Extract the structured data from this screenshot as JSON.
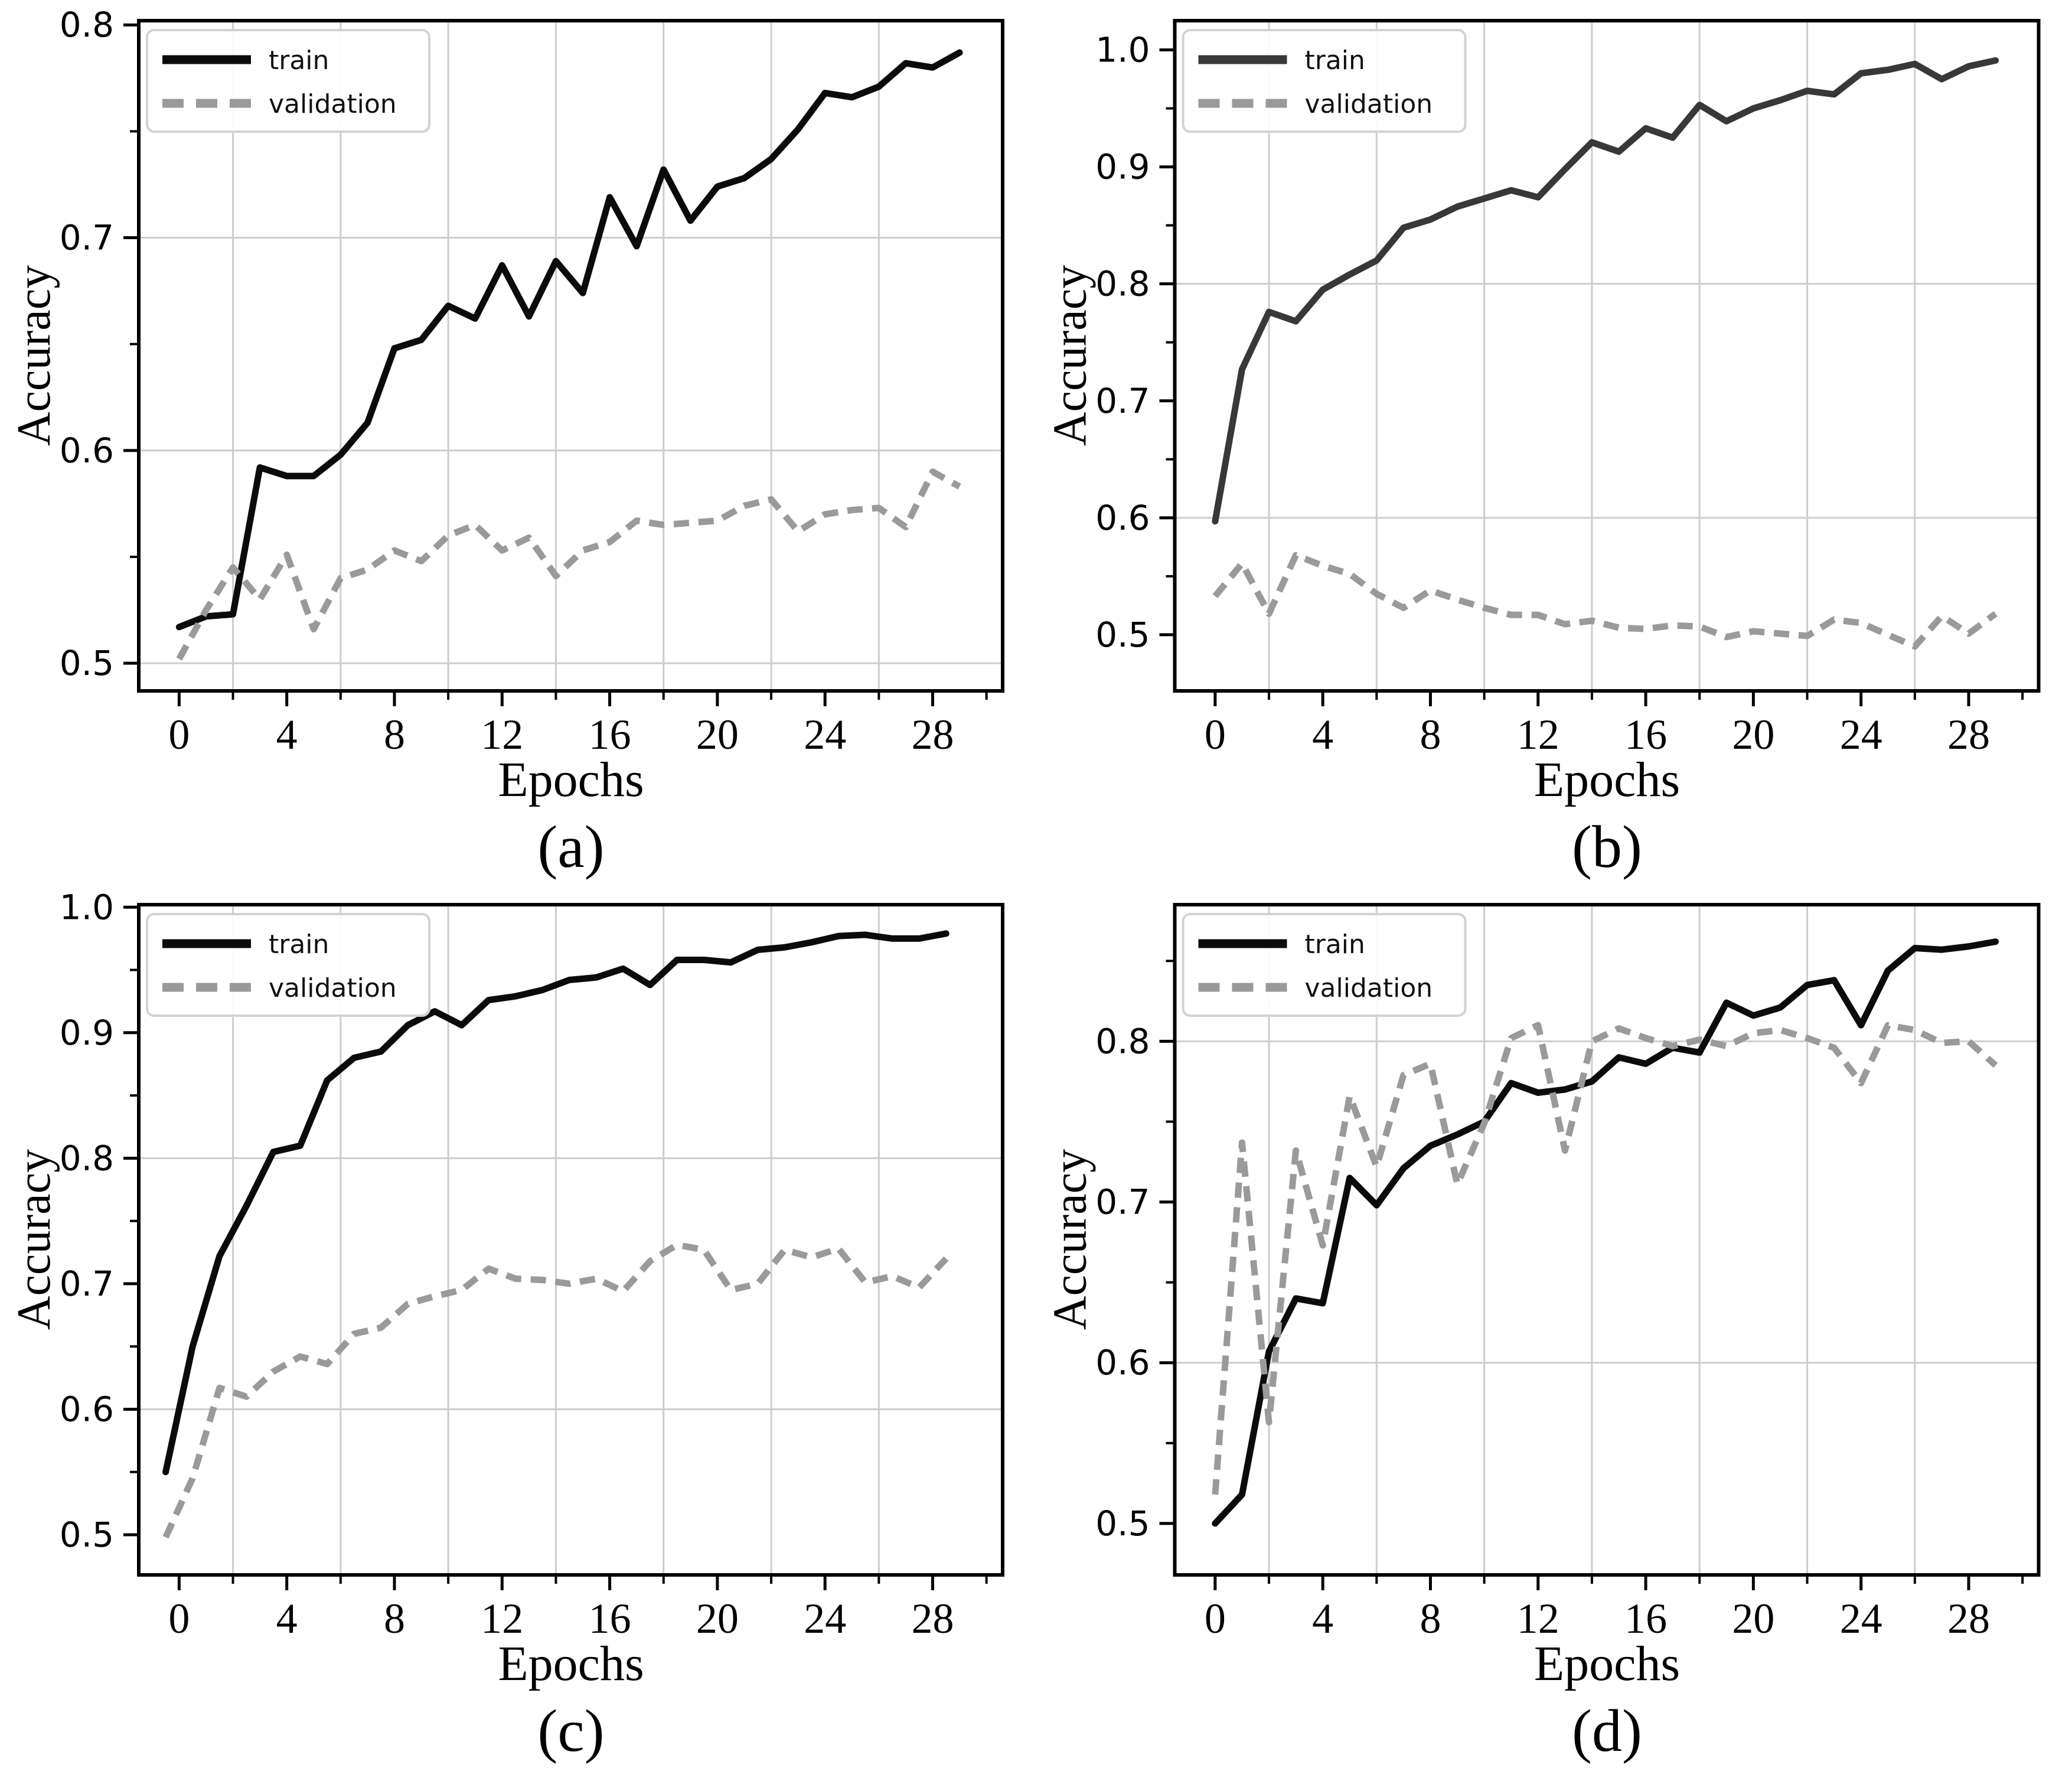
{
  "figure": {
    "background": "#ffffff",
    "grid_color": "#cdcdcd",
    "spine_color": "#000000",
    "legend_border_color": "#d2d2d2",
    "legend_fill": "#ffffff"
  },
  "chart_data": [
    {
      "type": "line",
      "caption": "(a)",
      "xlabel": "Epochs",
      "ylabel": "Accuracy",
      "x": [
        0,
        1,
        2,
        3,
        4,
        5,
        6,
        7,
        8,
        9,
        10,
        11,
        12,
        13,
        14,
        15,
        16,
        17,
        18,
        19,
        20,
        21,
        22,
        23,
        24,
        25,
        26,
        27,
        28,
        29
      ],
      "x_offset": 0,
      "xlim": [
        -1.5,
        30.6
      ],
      "ylim": [
        0.487,
        0.802
      ],
      "xticks": [
        0,
        4,
        8,
        12,
        16,
        20,
        24,
        28
      ],
      "xminorticks": [
        2,
        6,
        10,
        14,
        18,
        22,
        26,
        30
      ],
      "yticks": [
        0.5,
        0.6,
        0.7,
        0.8
      ],
      "ytick_labels": [
        "0.5",
        "0.6",
        "0.7",
        "0.8"
      ],
      "yminorticks": [
        0.55,
        0.65,
        0.75
      ],
      "grid_x": [
        2,
        6,
        10,
        14,
        18,
        22,
        26
      ],
      "grid_y": [
        0.5,
        0.6,
        0.7
      ],
      "legend_position": "upper-left",
      "series": [
        {
          "name": "train",
          "style": "solid",
          "color": "#0b0b0b",
          "values": [
            0.517,
            0.522,
            0.523,
            0.592,
            0.588,
            0.588,
            0.598,
            0.613,
            0.648,
            0.652,
            0.668,
            0.662,
            0.687,
            0.663,
            0.689,
            0.674,
            0.719,
            0.696,
            0.732,
            0.708,
            0.724,
            0.728,
            0.737,
            0.751,
            0.768,
            0.766,
            0.771,
            0.782,
            0.78,
            0.787
          ]
        },
        {
          "name": "validation",
          "style": "dashed",
          "color": "#9a9a9a",
          "values": [
            0.502,
            0.525,
            0.545,
            0.53,
            0.551,
            0.516,
            0.54,
            0.544,
            0.553,
            0.548,
            0.56,
            0.565,
            0.553,
            0.559,
            0.541,
            0.553,
            0.557,
            0.567,
            0.565,
            0.566,
            0.567,
            0.574,
            0.577,
            0.562,
            0.57,
            0.572,
            0.573,
            0.564,
            0.59,
            0.583
          ]
        }
      ]
    },
    {
      "type": "line",
      "caption": "(b)",
      "xlabel": "Epochs",
      "ylabel": "Accuracy",
      "x": [
        0,
        1,
        2,
        3,
        4,
        5,
        6,
        7,
        8,
        9,
        10,
        11,
        12,
        13,
        14,
        15,
        16,
        17,
        18,
        19,
        20,
        21,
        22,
        23,
        24,
        25,
        26,
        27,
        28,
        29
      ],
      "x_offset": 0,
      "xlim": [
        -1.5,
        30.6
      ],
      "ylim": [
        0.452,
        1.025
      ],
      "xticks": [
        0,
        4,
        8,
        12,
        16,
        20,
        24,
        28
      ],
      "xminorticks": [
        2,
        6,
        10,
        14,
        18,
        22,
        26,
        30
      ],
      "yticks": [
        0.5,
        0.6,
        0.7,
        0.8,
        0.9,
        1.0
      ],
      "ytick_labels": [
        "0.5",
        "0.6",
        "0.7",
        "0.8",
        "0.9",
        "1.0"
      ],
      "yminorticks": [
        0.55,
        0.65,
        0.75,
        0.85,
        0.95
      ],
      "grid_x": [
        2,
        6,
        10,
        14,
        18,
        22,
        26
      ],
      "grid_y": [
        0.6,
        0.8
      ],
      "legend_position": "upper-left",
      "series": [
        {
          "name": "train",
          "style": "solid",
          "color": "#383838",
          "values": [
            0.597,
            0.727,
            0.776,
            0.768,
            0.795,
            0.808,
            0.82,
            0.848,
            0.855,
            0.866,
            0.873,
            0.88,
            0.874,
            0.898,
            0.921,
            0.913,
            0.933,
            0.925,
            0.953,
            0.939,
            0.95,
            0.957,
            0.965,
            0.962,
            0.98,
            0.983,
            0.988,
            0.975,
            0.986,
            0.991
          ]
        },
        {
          "name": "validation",
          "style": "dashed",
          "color": "#9a9a9a",
          "values": [
            0.533,
            0.561,
            0.518,
            0.568,
            0.559,
            0.552,
            0.535,
            0.523,
            0.538,
            0.53,
            0.523,
            0.517,
            0.517,
            0.509,
            0.512,
            0.506,
            0.505,
            0.508,
            0.507,
            0.498,
            0.503,
            0.501,
            0.499,
            0.513,
            0.51,
            0.5,
            0.49,
            0.516,
            0.501,
            0.518
          ]
        }
      ]
    },
    {
      "type": "line",
      "caption": "(c)",
      "xlabel": "Epochs",
      "ylabel": "Accuracy",
      "x": [
        0,
        1,
        2,
        3,
        4,
        5,
        6,
        7,
        8,
        9,
        10,
        11,
        12,
        13,
        14,
        15,
        16,
        17,
        18,
        19,
        20,
        21,
        22,
        23,
        24,
        25,
        26,
        27,
        28,
        29
      ],
      "x_offset": -0.5,
      "xlim": [
        -1.5,
        30.6
      ],
      "ylim": [
        0.468,
        1.002
      ],
      "xticks": [
        0,
        4,
        8,
        12,
        16,
        20,
        24,
        28
      ],
      "xminorticks": [
        2,
        6,
        10,
        14,
        18,
        22,
        26,
        30
      ],
      "yticks": [
        0.5,
        0.6,
        0.7,
        0.8,
        0.9,
        1.0
      ],
      "ytick_labels": [
        "0.5",
        "0.6",
        "0.7",
        "0.8",
        "0.9",
        "1.0"
      ],
      "yminorticks": [
        0.55,
        0.65,
        0.75,
        0.85,
        0.95
      ],
      "grid_x": [
        2,
        6,
        10,
        14,
        18,
        22,
        26
      ],
      "grid_y": [
        0.6,
        0.8
      ],
      "legend_position": "upper-left",
      "series": [
        {
          "name": "train",
          "style": "solid",
          "color": "#0b0b0b",
          "values": [
            0.55,
            0.65,
            0.722,
            0.762,
            0.805,
            0.81,
            0.862,
            0.88,
            0.885,
            0.906,
            0.917,
            0.906,
            0.926,
            0.929,
            0.934,
            0.942,
            0.944,
            0.951,
            0.938,
            0.958,
            0.958,
            0.956,
            0.966,
            0.968,
            0.972,
            0.977,
            0.978,
            0.975,
            0.975,
            0.979
          ]
        },
        {
          "name": "validation",
          "style": "dashed",
          "color": "#9a9a9a",
          "values": [
            0.498,
            0.545,
            0.617,
            0.61,
            0.63,
            0.642,
            0.636,
            0.66,
            0.665,
            0.684,
            0.69,
            0.695,
            0.712,
            0.704,
            0.703,
            0.7,
            0.704,
            0.694,
            0.718,
            0.731,
            0.727,
            0.695,
            0.7,
            0.727,
            0.721,
            0.728,
            0.701,
            0.706,
            0.697,
            0.72
          ]
        }
      ]
    },
    {
      "type": "line",
      "caption": "(d)",
      "xlabel": "Epochs",
      "ylabel": "Accuracy",
      "x": [
        0,
        1,
        2,
        3,
        4,
        5,
        6,
        7,
        8,
        9,
        10,
        11,
        12,
        13,
        14,
        15,
        16,
        17,
        18,
        19,
        20,
        21,
        22,
        23,
        24,
        25,
        26,
        27,
        28,
        29
      ],
      "x_offset": 0,
      "xlim": [
        -1.5,
        30.6
      ],
      "ylim": [
        0.468,
        0.885
      ],
      "xticks": [
        0,
        4,
        8,
        12,
        16,
        20,
        24,
        28
      ],
      "xminorticks": [
        2,
        6,
        10,
        14,
        18,
        22,
        26,
        30
      ],
      "yticks": [
        0.5,
        0.6,
        0.7,
        0.8
      ],
      "ytick_labels": [
        "0.5",
        "0.6",
        "0.7",
        "0.8"
      ],
      "yminorticks": [
        0.55,
        0.65,
        0.75,
        0.85
      ],
      "grid_x": [
        2,
        6,
        10,
        14,
        18,
        22,
        26
      ],
      "grid_y": [
        0.6,
        0.8
      ],
      "legend_position": "upper-left",
      "series": [
        {
          "name": "train",
          "style": "solid",
          "color": "#0b0b0b",
          "values": [
            0.5,
            0.518,
            0.607,
            0.64,
            0.637,
            0.715,
            0.698,
            0.721,
            0.735,
            0.742,
            0.75,
            0.774,
            0.768,
            0.77,
            0.775,
            0.79,
            0.786,
            0.796,
            0.793,
            0.824,
            0.816,
            0.821,
            0.835,
            0.838,
            0.81,
            0.844,
            0.858,
            0.857,
            0.859,
            0.862
          ]
        },
        {
          "name": "validation",
          "style": "dashed",
          "color": "#9a9a9a",
          "values": [
            0.518,
            0.737,
            0.563,
            0.732,
            0.673,
            0.766,
            0.722,
            0.779,
            0.786,
            0.711,
            0.749,
            0.802,
            0.81,
            0.732,
            0.8,
            0.808,
            0.802,
            0.797,
            0.801,
            0.797,
            0.805,
            0.807,
            0.802,
            0.796,
            0.774,
            0.81,
            0.807,
            0.799,
            0.8,
            0.785
          ]
        }
      ]
    }
  ]
}
